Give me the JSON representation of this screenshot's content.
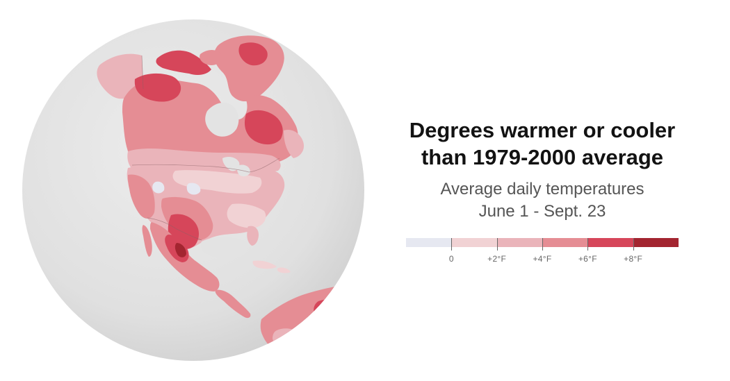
{
  "map": {
    "region": "North America",
    "projection": "orthographic globe",
    "colors": {
      "sphere": "#e3e3e3",
      "land_cool": "#e6e8f1",
      "land_0": "#f1d2d4",
      "land_2": "#eab4ba",
      "land_4": "#e58d94",
      "land_6": "#d6465a",
      "land_8": "#a32530",
      "border": "#8a6166"
    }
  },
  "legend": {
    "title_line1": "Degrees warmer or cooler",
    "title_line2": "than 1979-2000 average",
    "subtitle_line1": "Average daily temperatures",
    "subtitle_line2": "June 1 - Sept. 23",
    "bins": [
      {
        "color": "#e6e8f1"
      },
      {
        "color": "#f1d2d4"
      },
      {
        "color": "#eab4ba"
      },
      {
        "color": "#e58d94"
      },
      {
        "color": "#d6465a"
      },
      {
        "color": "#a32530"
      }
    ],
    "ticks": [
      "0",
      "+2°F",
      "+4°F",
      "+6°F",
      "+8°F"
    ]
  }
}
